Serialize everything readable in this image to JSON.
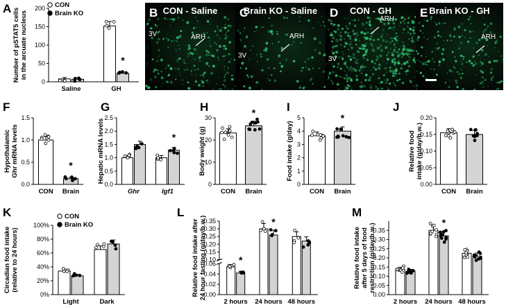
{
  "figure": {
    "colors": {
      "con_fill": "#ffffff",
      "ko_fill": "#d4d4d4",
      "axis": "#000000",
      "micro_green": "#34d67a"
    },
    "panels": {
      "A": {
        "letter": "A",
        "ylabel": [
          "Number of pSTAT5 cells",
          "in the arcuate nucleus"
        ],
        "legend": [
          "CON",
          "Brain KO"
        ],
        "chart_data": {
          "type": "bar",
          "categories": [
            "Saline",
            "GH"
          ],
          "series": [
            {
              "name": "CON",
              "values": [
                8,
                152
              ]
            },
            {
              "name": "Brain KO",
              "values": [
                7,
                23
              ]
            }
          ],
          "ylim": [
            0,
            200
          ],
          "yticks": [
            "0",
            "50",
            "100",
            "150",
            "200"
          ],
          "significance": [
            "",
            "*"
          ]
        }
      },
      "B": {
        "letter": "B",
        "title": "CON - Saline",
        "labels": [
          "3V",
          "ARH"
        ]
      },
      "C": {
        "letter": "C",
        "title": "Brain KO - Saline",
        "labels": [
          "3V",
          "ARH"
        ]
      },
      "D": {
        "letter": "D",
        "title": "CON - GH",
        "labels": [
          "3V",
          "ARH"
        ]
      },
      "E": {
        "letter": "E",
        "title": "Brain KO - GH",
        "labels": [
          "ARH"
        ]
      },
      "F": {
        "letter": "F",
        "ylabel": [
          "Hypothalamic",
          "Ghr mRNA levels"
        ],
        "chart_data": {
          "type": "bar",
          "categories": [
            "CON",
            "Brain"
          ],
          "values": [
            1.0,
            0.13
          ],
          "ylim": [
            0,
            1.5
          ],
          "yticks": [
            "0.0",
            "0.5",
            "1.0",
            "1.5"
          ],
          "significance": [
            "",
            "*"
          ]
        }
      },
      "G": {
        "letter": "G",
        "ylabel": [
          "Hepatic mRNA levels"
        ],
        "chart_data": {
          "type": "bar",
          "categories": [
            "Ghr",
            "Igf1"
          ],
          "series": [
            {
              "name": "CON",
              "values": [
                1.0,
                1.0
              ]
            },
            {
              "name": "Brain KO",
              "values": [
                1.5,
                1.28
              ]
            }
          ],
          "ylim": [
            0,
            2.5
          ],
          "yticks": [
            "0.0",
            "0.5",
            "1.0",
            "1.5",
            "2.0",
            "2.5"
          ],
          "significance": [
            "",
            "*"
          ]
        }
      },
      "H": {
        "letter": "H",
        "ylabel": [
          "Body weight (g)"
        ],
        "chart_data": {
          "type": "bar",
          "categories": [
            "CON",
            "Brain"
          ],
          "values": [
            23.2,
            26.4
          ],
          "ylim": [
            0,
            30
          ],
          "yticks": [
            "0",
            "10",
            "20",
            "30"
          ],
          "significance": [
            "",
            "*"
          ]
        }
      },
      "I": {
        "letter": "I",
        "ylabel": [
          "Food intake (g/day)"
        ],
        "chart_data": {
          "type": "bar",
          "categories": [
            "CON",
            "Brain"
          ],
          "values": [
            3.65,
            4.0
          ],
          "ylim": [
            0,
            5
          ],
          "yticks": [
            "0",
            "1",
            "2",
            "3",
            "4",
            "5"
          ],
          "significance": [
            "",
            "*"
          ]
        }
      },
      "J": {
        "letter": "J",
        "ylabel": [
          "Relative food",
          "intake (g/day/b.w.)"
        ],
        "chart_data": {
          "type": "bar",
          "categories": [
            "CON",
            "Brain"
          ],
          "values": [
            0.155,
            0.15
          ],
          "ylim": [
            0,
            0.2
          ],
          "yticks": [
            "0.00",
            "0.05",
            "0.10",
            "0.15",
            "0.20"
          ],
          "significance": [
            "",
            ""
          ]
        }
      },
      "K": {
        "letter": "K",
        "ylabel": [
          "Circadian food intake",
          "(relative to 24 hours)"
        ],
        "legend": [
          "CON",
          "Brain KO"
        ],
        "chart_data": {
          "type": "bar",
          "categories": [
            "Light",
            "Dark"
          ],
          "series": [
            {
              "name": "CON",
              "values": [
                34,
                65
              ]
            },
            {
              "name": "Brain KO",
              "values": [
                27,
                73
              ]
            }
          ],
          "ylim": [
            0,
            100
          ],
          "yticks": [
            "0%",
            "20%",
            "40%",
            "60%",
            "80%",
            "100%"
          ],
          "significance": [
            "",
            ""
          ]
        }
      },
      "L": {
        "letter": "L",
        "ylabel": [
          "Relative food intake after",
          "24 hour fasting (g/day/b.w.)"
        ],
        "chart_data": {
          "type": "bar",
          "categories": [
            "2 hours",
            "24 hours",
            "48 hours"
          ],
          "series": [
            {
              "name": "CON",
              "values": [
                0.054,
                0.3,
                0.25
              ]
            },
            {
              "name": "Brain KO",
              "values": [
                0.042,
                0.26,
                0.22
              ]
            }
          ],
          "ylim": [
            0,
            0.35
          ],
          "axis_break": [
            0.06,
            0.1
          ],
          "yticks": [
            "0.00",
            "0.02",
            "0.04",
            "0.06",
            "0.10",
            "0.15",
            "0.20",
            "0.25",
            "0.30",
            "0.35"
          ],
          "significance": [
            "*",
            "*",
            ""
          ]
        }
      },
      "M": {
        "letter": "M",
        "ylabel": [
          "Relative food intake",
          "after 5 days of food",
          "restriction (g/day/b.w.)"
        ],
        "chart_data": {
          "type": "bar",
          "categories": [
            "2 hours",
            "24 hours",
            "48 hours"
          ],
          "series": [
            {
              "name": "CON",
              "values": [
                0.138,
                0.35,
                0.225
              ]
            },
            {
              "name": "Brain KO",
              "values": [
                0.127,
                0.32,
                0.21
              ]
            }
          ],
          "ylim": [
            0,
            0.4
          ],
          "yticks": [
            "0.00",
            "0.05",
            "0.10",
            "0.15",
            "0.20",
            "0.25",
            "0.30",
            "0.35"
          ],
          "significance": [
            "",
            "*",
            ""
          ]
        }
      }
    }
  }
}
